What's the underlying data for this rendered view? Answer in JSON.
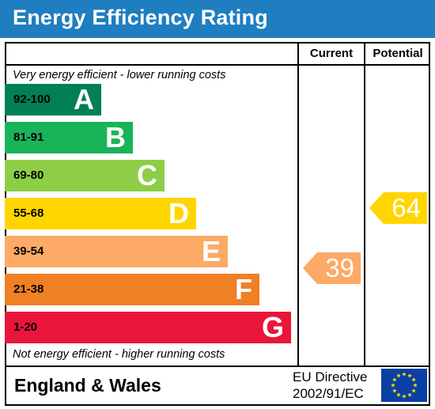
{
  "title": "Energy Efficiency Rating",
  "columns": {
    "current": "Current",
    "potential": "Potential"
  },
  "top_caption": "Very energy efficient - lower running costs",
  "bottom_caption": "Not energy efficient - higher running costs",
  "bands": [
    {
      "range": "92-100",
      "letter": "A",
      "color": "#008054"
    },
    {
      "range": "81-91",
      "letter": "B",
      "color": "#19b459"
    },
    {
      "range": "69-80",
      "letter": "C",
      "color": "#8dce46"
    },
    {
      "range": "55-68",
      "letter": "D",
      "color": "#ffd500"
    },
    {
      "range": "39-54",
      "letter": "E",
      "color": "#fcaa65"
    },
    {
      "range": "21-38",
      "letter": "F",
      "color": "#ef8023"
    },
    {
      "range": "1-20",
      "letter": "G",
      "color": "#e9153b"
    }
  ],
  "current_rating": {
    "value": "39",
    "band": "E",
    "color": "#fcaa65"
  },
  "potential_rating": {
    "value": "64",
    "band": "D",
    "color": "#ffd500"
  },
  "footer": {
    "region": "England & Wales",
    "directive_line1": "EU Directive",
    "directive_line2": "2002/91/EC"
  },
  "eu_flag": {
    "icon": "eu-flag-icon",
    "background": "#0a3fa3",
    "star_color": "#ffdd00"
  }
}
